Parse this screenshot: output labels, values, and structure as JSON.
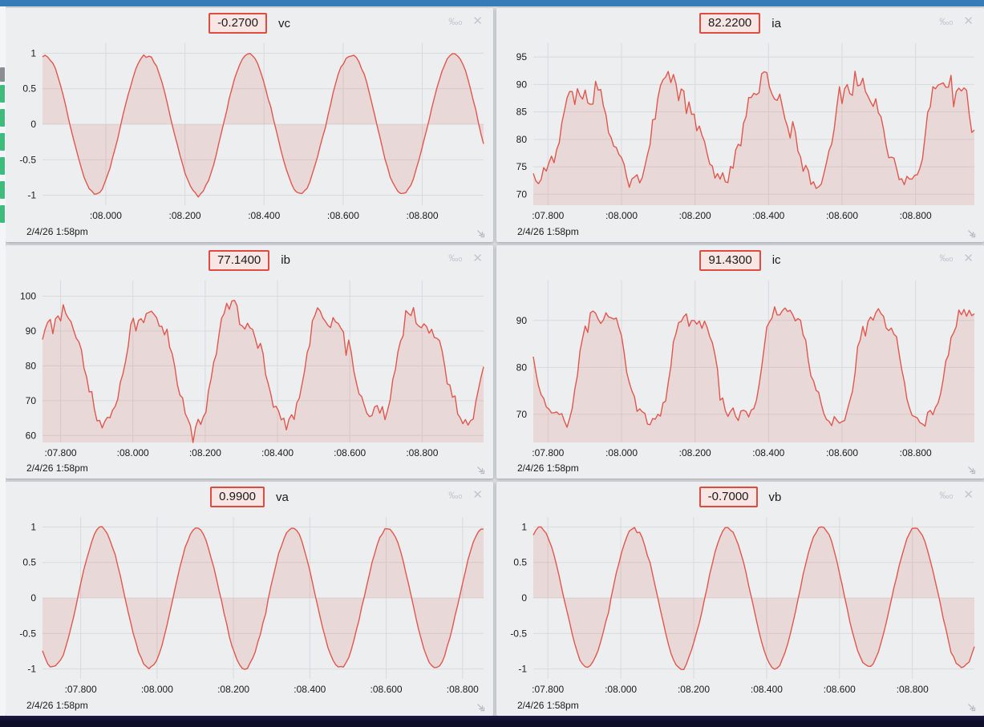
{
  "chrome": {
    "top_bar_color": "#377cb8",
    "bottom_bar_color": "#0e0e2a",
    "left_strip": {
      "blocks": [
        {
          "color": "#8a8f94",
          "y": 76,
          "h": 18
        },
        {
          "color": "#41ba7e",
          "y": 98,
          "h": 22
        },
        {
          "color": "#41ba7e",
          "y": 128,
          "h": 22
        },
        {
          "color": "#41ba7e",
          "y": 158,
          "h": 22
        },
        {
          "color": "#41ba7e",
          "y": 188,
          "h": 22
        },
        {
          "color": "#41ba7e",
          "y": 218,
          "h": 22
        },
        {
          "color": "#41ba7e",
          "y": 248,
          "h": 22
        }
      ]
    }
  },
  "colors": {
    "line": "#e2574d",
    "fill": "rgba(217,83,73,0.14)",
    "grid": "#d8dadc",
    "axis_text": "#1b1b1b",
    "panel_bg": "#eceef0",
    "badge_border": "#e04b40",
    "badge_bg": "#f7e6e3",
    "icon_gray": "#c4c7ca",
    "resize_gray": "#b5b8bb"
  },
  "icons": {
    "permille": "‰",
    "permille_suffix": "o",
    "close": "✕"
  },
  "panels": [
    {
      "value": "-0.2700",
      "label": "vc",
      "timestamp": "2/4/26 1:58pm"
    },
    {
      "value": "82.2200",
      "label": "ia",
      "timestamp": "2/4/26 1:58pm"
    },
    {
      "value": "77.1400",
      "label": "ib",
      "timestamp": "2/4/26 1:58pm"
    },
    {
      "value": "91.4300",
      "label": "ic",
      "timestamp": "2/4/26 1:58pm"
    },
    {
      "value": "0.9900",
      "label": "va",
      "timestamp": "2/4/26 1:58pm"
    },
    {
      "value": "-0.7000",
      "label": "vb",
      "timestamp": "2/4/26 1:58pm"
    }
  ],
  "chart_data": [
    {
      "type": "line",
      "title": "vc",
      "current_value": -0.27,
      "x_range": [
        7.84,
        8.955
      ],
      "x_ticks": [
        8.0,
        8.2,
        8.4,
        8.6,
        8.8
      ],
      "x_tick_labels": [
        ":08.000",
        ":08.200",
        ":08.400",
        ":08.600",
        ":08.800"
      ],
      "y_range": [
        -1.14,
        1.14
      ],
      "y_ticks": [
        1,
        0.5,
        0,
        -0.5,
        -1
      ],
      "y_tick_labels": [
        "1",
        "0.5",
        "0",
        "-0.5",
        "-1"
      ],
      "start_label": "2/4/26 1:58pm",
      "grid": true,
      "fill_to": 0,
      "observed_min": -1.0,
      "observed_max": 1.0,
      "waveform": {
        "kind": "sine",
        "offset": 0,
        "amplitude": 0.985,
        "period": 0.2585,
        "peak_t": 7.845,
        "h2": 0,
        "flatten": 0,
        "noise": 0.013,
        "seed": 7,
        "samples": 170
      }
    },
    {
      "type": "line",
      "title": "ia",
      "current_value": 82.22,
      "x_range": [
        7.76,
        8.96
      ],
      "x_ticks": [
        7.8,
        8.0,
        8.2,
        8.4,
        8.6,
        8.8
      ],
      "x_tick_labels": [
        ":07.800",
        ":08.000",
        ":08.200",
        ":08.400",
        ":08.600",
        ":08.800"
      ],
      "y_range": [
        68,
        97.5
      ],
      "y_ticks": [
        95,
        90,
        85,
        80,
        75,
        70
      ],
      "y_tick_labels": [
        "95",
        "90",
        "85",
        "80",
        "75",
        "70"
      ],
      "start_label": "2/4/26 1:58pm",
      "grid": true,
      "fill_to": 0,
      "observed_min": 71.5,
      "observed_max": 94.5,
      "waveform": {
        "kind": "noisy-sine",
        "offset": 82,
        "amplitude": 8,
        "period": 0.25,
        "peak_t": 7.895,
        "h2": 1.4,
        "flatten": 1.6,
        "noise": 1.5,
        "seed": 13,
        "samples": 170
      }
    },
    {
      "type": "line",
      "title": "ib",
      "current_value": 77.14,
      "x_range": [
        7.75,
        8.97
      ],
      "x_ticks": [
        7.8,
        8.0,
        8.2,
        8.4,
        8.6,
        8.8
      ],
      "x_tick_labels": [
        ":07.800",
        ":08.000",
        ":08.200",
        ":08.400",
        ":08.600",
        ":08.800"
      ],
      "y_range": [
        58,
        104.5
      ],
      "y_ticks": [
        100,
        90,
        80,
        70,
        60
      ],
      "y_tick_labels": [
        "100",
        "90",
        "80",
        "70",
        "60"
      ],
      "start_label": "2/4/26 1:58pm",
      "grid": true,
      "fill_to": 0,
      "observed_min": 62,
      "observed_max": 101,
      "waveform": {
        "kind": "noisy-sine",
        "offset": 81,
        "amplitude": 15,
        "period": 0.248,
        "peak_t": 8.045,
        "h2": 1.8,
        "flatten": 1.2,
        "noise": 1.9,
        "seed": 29,
        "samples": 170
      }
    },
    {
      "type": "line",
      "title": "ic",
      "current_value": 91.43,
      "x_range": [
        7.76,
        8.96
      ],
      "x_ticks": [
        7.8,
        8.0,
        8.2,
        8.4,
        8.6,
        8.8
      ],
      "x_tick_labels": [
        ":07.800",
        ":08.000",
        ":08.200",
        ":08.400",
        ":08.600",
        ":08.800"
      ],
      "y_range": [
        64,
        98.5
      ],
      "y_ticks": [
        90,
        80,
        70
      ],
      "y_tick_labels": [
        "90",
        "80",
        "70"
      ],
      "start_label": "2/4/26 1:58pm",
      "grid": true,
      "fill_to": 0,
      "observed_min": 68,
      "observed_max": 93,
      "waveform": {
        "kind": "noisy-sine",
        "offset": 80.5,
        "amplitude": 10.5,
        "period": 0.25,
        "peak_t": 7.9475,
        "h2": 1.0,
        "flatten": 2.0,
        "noise": 1.2,
        "seed": 41,
        "samples": 170
      }
    },
    {
      "type": "line",
      "title": "va",
      "current_value": 0.99,
      "x_range": [
        7.7,
        8.855
      ],
      "x_ticks": [
        7.8,
        8.0,
        8.2,
        8.4,
        8.6,
        8.8
      ],
      "x_tick_labels": [
        ":07.800",
        ":08.000",
        ":08.200",
        ":08.400",
        ":08.600",
        ":08.800"
      ],
      "y_range": [
        -1.14,
        1.14
      ],
      "y_ticks": [
        1,
        0.5,
        0,
        -0.5,
        -1
      ],
      "y_tick_labels": [
        "1",
        "0.5",
        "0",
        "-0.5",
        "-1"
      ],
      "start_label": "2/4/26 1:58pm",
      "grid": true,
      "fill_to": 0,
      "observed_min": -1.0,
      "observed_max": 1.0,
      "waveform": {
        "kind": "sine",
        "offset": 0,
        "amplitude": 0.985,
        "period": 0.25,
        "peak_t": 7.854,
        "h2": 0,
        "flatten": 0,
        "noise": 0.013,
        "seed": 53,
        "samples": 170
      }
    },
    {
      "type": "line",
      "title": "vb",
      "current_value": -0.7,
      "x_range": [
        7.76,
        8.97
      ],
      "x_ticks": [
        7.8,
        8.0,
        8.2,
        8.4,
        8.6,
        8.8
      ],
      "x_tick_labels": [
        ":07.800",
        ":08.000",
        ":08.200",
        ":08.400",
        ":08.600",
        ":08.800"
      ],
      "y_range": [
        -1.14,
        1.14
      ],
      "y_ticks": [
        1,
        0.5,
        0,
        -0.5,
        -1
      ],
      "y_tick_labels": [
        "1",
        "0.5",
        "0",
        "-0.5",
        "-1"
      ],
      "start_label": "2/4/26 1:58pm",
      "grid": true,
      "fill_to": 0,
      "observed_min": -1.0,
      "observed_max": 1.0,
      "waveform": {
        "kind": "sine",
        "offset": 0,
        "amplitude": 0.985,
        "period": 0.257,
        "peak_t": 7.78,
        "h2": 0,
        "flatten": 0,
        "noise": 0.013,
        "seed": 67,
        "samples": 170
      }
    }
  ]
}
